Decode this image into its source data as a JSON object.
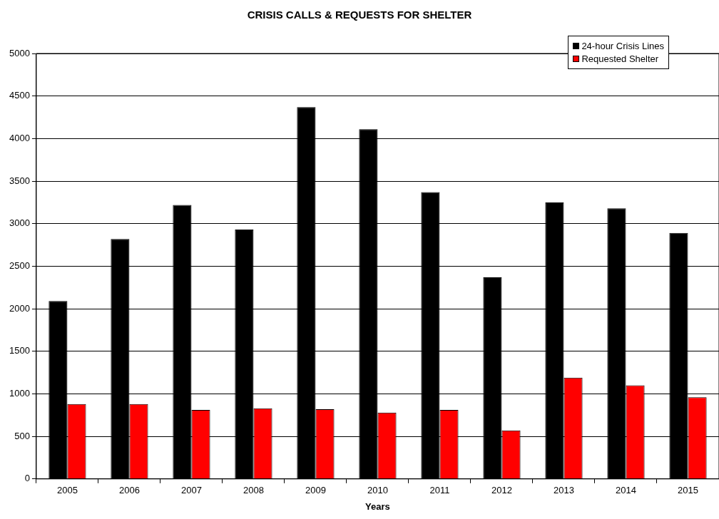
{
  "chart_data": {
    "type": "bar",
    "title": "CRISIS CALLS & REQUESTS FOR SHELTER",
    "xlabel": "Years",
    "categories": [
      "2005",
      "2006",
      "2007",
      "2008",
      "2009",
      "2010",
      "2011",
      "2012",
      "2013",
      "2014",
      "2015"
    ],
    "series": [
      {
        "name": "24-hour Crisis Lines",
        "color": "#000000",
        "values": [
          2090,
          2820,
          3220,
          2930,
          4370,
          4110,
          3370,
          2370,
          3250,
          3180,
          2890
        ]
      },
      {
        "name": "Requested Shelter",
        "color": "#ff0000",
        "values": [
          880,
          880,
          810,
          830,
          820,
          780,
          810,
          570,
          1190,
          1100,
          960
        ]
      }
    ],
    "ylim": [
      0,
      5000
    ],
    "yticks": [
      0,
      500,
      1000,
      1500,
      2000,
      2500,
      3000,
      3500,
      4000,
      4500,
      5000
    ],
    "grid": "y",
    "legend": "top right"
  }
}
